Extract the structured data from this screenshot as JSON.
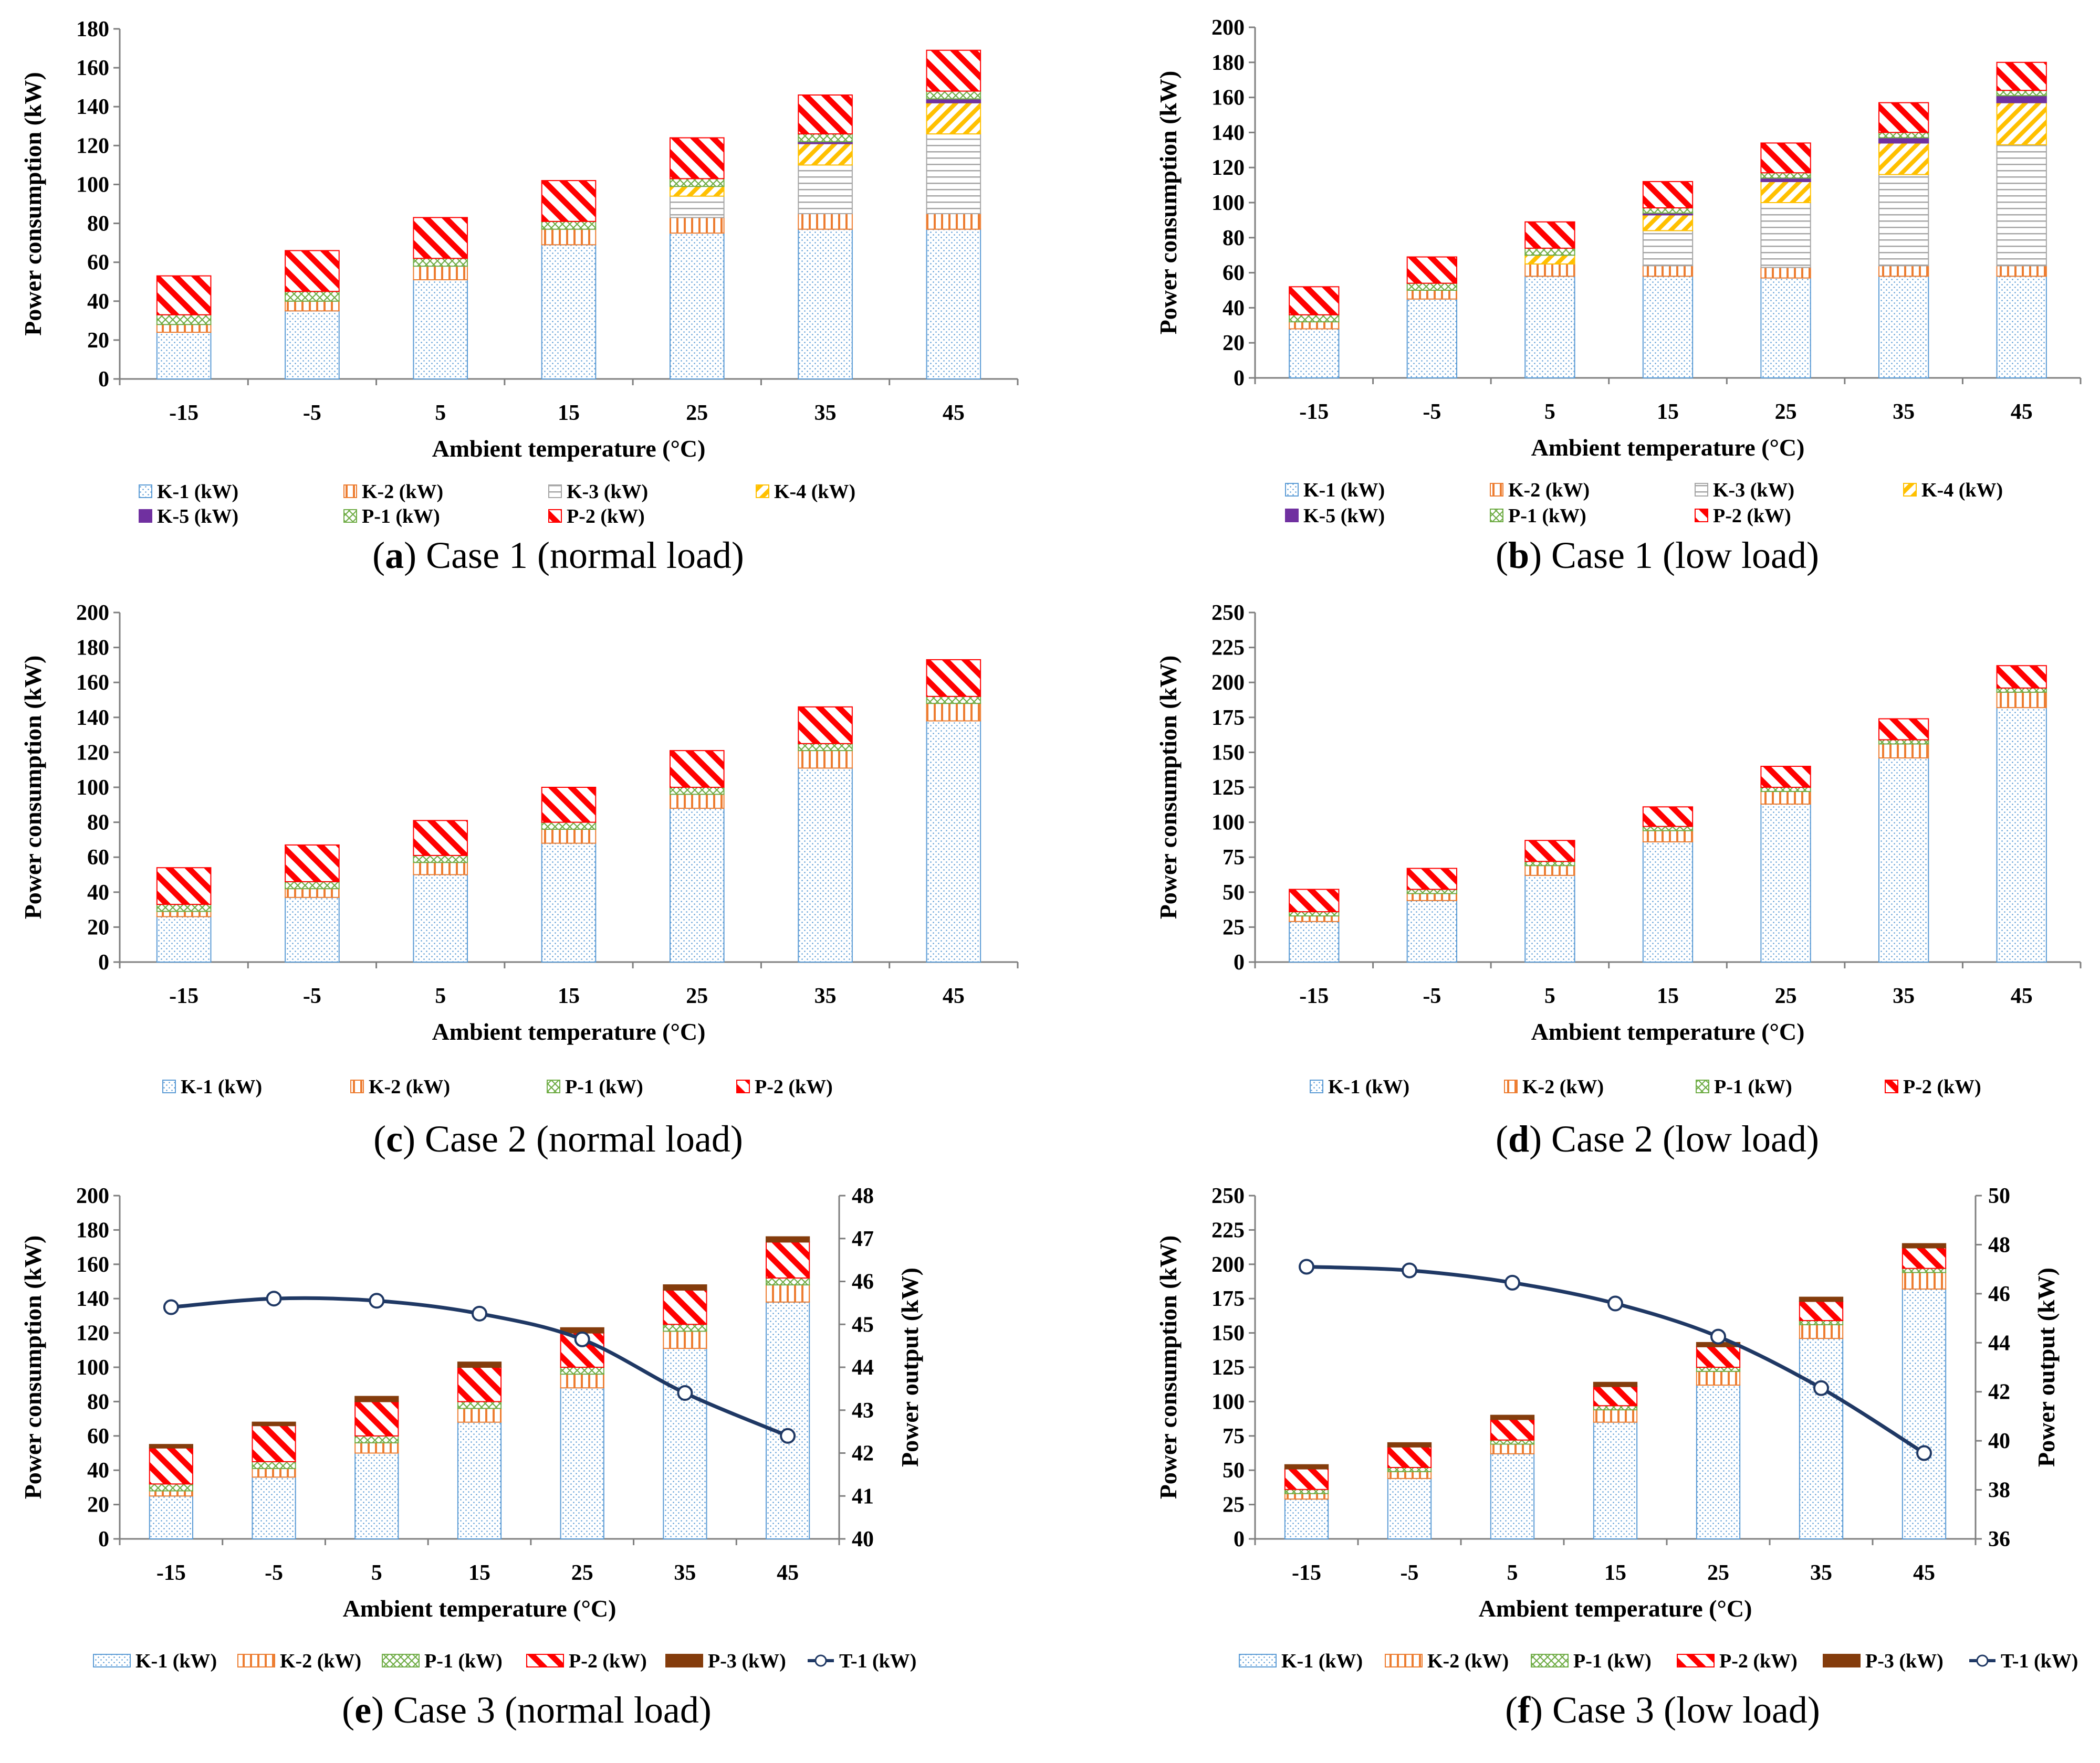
{
  "styles": {
    "K-1 (kW)": {
      "fill": "url(#pK1)",
      "stroke": "#5b9bd5",
      "swatch": "#5b9bd5"
    },
    "K-2 (kW)": {
      "fill": "url(#pK2)",
      "stroke": "#ed7d31",
      "swatch": "#ed7d31"
    },
    "K-3 (kW)": {
      "fill": "url(#pK3)",
      "stroke": "#a5a5a5",
      "swatch": "#a5a5a5"
    },
    "K-4 (kW)": {
      "fill": "url(#pK4)",
      "stroke": "#ffc000",
      "swatch": "#ffc000"
    },
    "K-5 (kW)": {
      "fill": "#7030a0",
      "stroke": "#7030a0",
      "swatch": "#7030a0"
    },
    "P-1 (kW)": {
      "fill": "url(#pP1)",
      "stroke": "#70ad47",
      "swatch": "#70ad47"
    },
    "P-2 (kW)": {
      "fill": "url(#pP2)",
      "stroke": "#ff0000",
      "swatch": "#ff0000"
    },
    "P-3 (kW)": {
      "fill": "#843c0c",
      "stroke": "#843c0c",
      "swatch": "#843c0c"
    },
    "T-1 (kW)": {
      "line": "#1f3864"
    }
  },
  "chart_data": [
    {
      "id": "a",
      "type": "bar",
      "caption_letter": "a",
      "caption_text": "Case 1 (normal load)",
      "xlabel": "Ambient temperature (°C)",
      "ylabel": "Power consumption (kW)",
      "categories": [
        "-15",
        "-5",
        "5",
        "15",
        "25",
        "35",
        "45"
      ],
      "ylim": [
        0,
        180
      ],
      "ytick_step": 20,
      "series": [
        {
          "name": "K-1 (kW)",
          "values": [
            24,
            35,
            51,
            69,
            75,
            77,
            77
          ]
        },
        {
          "name": "K-2 (kW)",
          "values": [
            4,
            5,
            7,
            8,
            8,
            8,
            8
          ]
        },
        {
          "name": "K-3 (kW)",
          "values": [
            0,
            0,
            0,
            0,
            11,
            25,
            41
          ]
        },
        {
          "name": "K-4 (kW)",
          "values": [
            0,
            0,
            0,
            0,
            5,
            11,
            16
          ]
        },
        {
          "name": "K-5 (kW)",
          "values": [
            0,
            0,
            0,
            0,
            0,
            1,
            2
          ]
        },
        {
          "name": "P-1 (kW)",
          "values": [
            5,
            5,
            4,
            4,
            4,
            4,
            4
          ]
        },
        {
          "name": "P-2 (kW)",
          "values": [
            20,
            21,
            21,
            21,
            21,
            20,
            21
          ]
        }
      ],
      "legend": [
        [
          "K-1 (kW)",
          "K-2 (kW)",
          "K-3 (kW)",
          "K-4 (kW)"
        ],
        [
          "K-5 (kW)",
          "P-1 (kW)",
          "P-2 (kW)"
        ]
      ]
    },
    {
      "id": "b",
      "type": "bar",
      "caption_letter": "b",
      "caption_text": "Case 1 (low load)",
      "xlabel": "Ambient temperature (°C)",
      "ylabel": "Power consumption (kW)",
      "categories": [
        "-15",
        "-5",
        "5",
        "15",
        "25",
        "35",
        "45"
      ],
      "ylim": [
        0,
        200
      ],
      "ytick_step": 20,
      "series": [
        {
          "name": "K-1 (kW)",
          "values": [
            28,
            45,
            58,
            58,
            57,
            58,
            58
          ]
        },
        {
          "name": "K-2 (kW)",
          "values": [
            4,
            5,
            7,
            6,
            6,
            6,
            6
          ]
        },
        {
          "name": "K-3 (kW)",
          "values": [
            0,
            0,
            0,
            20,
            37,
            52,
            69
          ]
        },
        {
          "name": "K-4 (kW)",
          "values": [
            0,
            0,
            5,
            9,
            12,
            18,
            24
          ]
        },
        {
          "name": "K-5 (kW)",
          "values": [
            0,
            0,
            0,
            1,
            2,
            3,
            4
          ]
        },
        {
          "name": "P-1 (kW)",
          "values": [
            4,
            4,
            4,
            3,
            3,
            3,
            3
          ]
        },
        {
          "name": "P-2 (kW)",
          "values": [
            16,
            15,
            15,
            15,
            17,
            17,
            16
          ]
        }
      ],
      "legend": [
        [
          "K-1 (kW)",
          "K-2 (kW)",
          "K-3 (kW)",
          "K-4 (kW)"
        ],
        [
          "K-5 (kW)",
          "P-1 (kW)",
          "P-2 (kW)"
        ]
      ]
    },
    {
      "id": "c",
      "type": "bar",
      "caption_letter": "c",
      "caption_text": "Case 2 (normal load)",
      "xlabel": "Ambient temperature (°C)",
      "ylabel": "Power consumption (kW)",
      "categories": [
        "-15",
        "-5",
        "5",
        "15",
        "25",
        "35",
        "45"
      ],
      "ylim": [
        0,
        200
      ],
      "ytick_step": 20,
      "series": [
        {
          "name": "K-1 (kW)",
          "values": [
            26,
            37,
            50,
            68,
            88,
            111,
            138
          ]
        },
        {
          "name": "K-2 (kW)",
          "values": [
            3,
            5,
            7,
            8,
            8,
            10,
            10
          ]
        },
        {
          "name": "P-1 (kW)",
          "values": [
            4,
            4,
            4,
            4,
            4,
            4,
            4
          ]
        },
        {
          "name": "P-2 (kW)",
          "values": [
            21,
            21,
            20,
            20,
            21,
            21,
            21
          ]
        }
      ],
      "legend": [
        [
          "K-1 (kW)",
          "K-2 (kW)",
          "P-1 (kW)",
          "P-2 (kW)"
        ]
      ]
    },
    {
      "id": "d",
      "type": "bar",
      "caption_letter": "d",
      "caption_text": "Case 2 (low load)",
      "xlabel": "Ambient temperature (°C)",
      "ylabel": "Power consumption (kW)",
      "categories": [
        "-15",
        "-5",
        "5",
        "15",
        "25",
        "35",
        "45"
      ],
      "ylim": [
        0,
        250
      ],
      "ytick_step": 25,
      "series": [
        {
          "name": "K-1 (kW)",
          "values": [
            29,
            44,
            62,
            86,
            113,
            146,
            182
          ]
        },
        {
          "name": "K-2 (kW)",
          "values": [
            4,
            5,
            7,
            8,
            9,
            10,
            11
          ]
        },
        {
          "name": "P-1 (kW)",
          "values": [
            3,
            3,
            3,
            3,
            3,
            3,
            3
          ]
        },
        {
          "name": "P-2 (kW)",
          "values": [
            16,
            15,
            15,
            14,
            15,
            15,
            16
          ]
        }
      ],
      "legend": [
        [
          "K-1 (kW)",
          "K-2 (kW)",
          "P-1 (kW)",
          "P-2 (kW)"
        ]
      ]
    },
    {
      "id": "e",
      "type": "bar+line",
      "caption_letter": "e",
      "caption_text": "Case 3 (normal load)",
      "xlabel": "Ambient temperature (°C)",
      "ylabel": "Power consumption  (kW)",
      "y2label": "Power output  (kW)",
      "categories": [
        "-15",
        "-5",
        "5",
        "15",
        "25",
        "35",
        "45"
      ],
      "ylim": [
        0,
        200
      ],
      "ytick_step": 20,
      "y2lim": [
        40,
        48
      ],
      "y2tick_step": 1,
      "series": [
        {
          "name": "K-1 (kW)",
          "values": [
            25,
            36,
            50,
            68,
            88,
            111,
            138
          ]
        },
        {
          "name": "K-2 (kW)",
          "values": [
            3,
            5,
            6,
            8,
            8,
            10,
            10
          ]
        },
        {
          "name": "P-1 (kW)",
          "values": [
            4,
            4,
            4,
            4,
            4,
            4,
            4
          ]
        },
        {
          "name": "P-2 (kW)",
          "values": [
            21,
            21,
            20,
            20,
            20,
            20,
            21
          ]
        },
        {
          "name": "P-3 (kW)",
          "values": [
            2,
            2,
            3,
            3,
            3,
            3,
            3
          ]
        }
      ],
      "line": {
        "name": "T-1 (kW)",
        "values": [
          45.4,
          45.6,
          45.55,
          45.25,
          44.65,
          43.4,
          42.4
        ]
      },
      "legend": [
        [
          "K-1 (kW)",
          "K-2 (kW)",
          "P-1 (kW)",
          "P-2 (kW)",
          "P-3 (kW)",
          "T-1 (kW)"
        ]
      ]
    },
    {
      "id": "f",
      "type": "bar+line",
      "caption_letter": "f",
      "caption_text": "Case 3 (low load)",
      "xlabel": "Ambient temperature (°C)",
      "ylabel": "Power consumption  (kW)",
      "y2label": "Power output  (kW)",
      "categories": [
        "-15",
        "-5",
        "5",
        "15",
        "25",
        "35",
        "45"
      ],
      "ylim": [
        0,
        250
      ],
      "ytick_step": 25,
      "y2lim": [
        36,
        50
      ],
      "y2tick_step": 2,
      "series": [
        {
          "name": "K-1 (kW)",
          "values": [
            29,
            44,
            62,
            85,
            112,
            146,
            182
          ]
        },
        {
          "name": "K-2 (kW)",
          "values": [
            4,
            5,
            7,
            9,
            10,
            10,
            12
          ]
        },
        {
          "name": "P-1 (kW)",
          "values": [
            3,
            3,
            3,
            3,
            3,
            3,
            3
          ]
        },
        {
          "name": "P-2 (kW)",
          "values": [
            15,
            15,
            15,
            14,
            15,
            14,
            15
          ]
        },
        {
          "name": "P-3 (kW)",
          "values": [
            3,
            3,
            3,
            3,
            3,
            3,
            3
          ]
        }
      ],
      "line": {
        "name": "T-1 (kW)",
        "values": [
          47.1,
          46.95,
          46.45,
          45.6,
          44.25,
          42.15,
          39.5
        ]
      },
      "legend": [
        [
          "K-1 (kW)",
          "K-2 (kW)",
          "P-1 (kW)",
          "P-2 (kW)",
          "P-3 (kW)",
          "T-1 (kW)"
        ]
      ]
    }
  ]
}
